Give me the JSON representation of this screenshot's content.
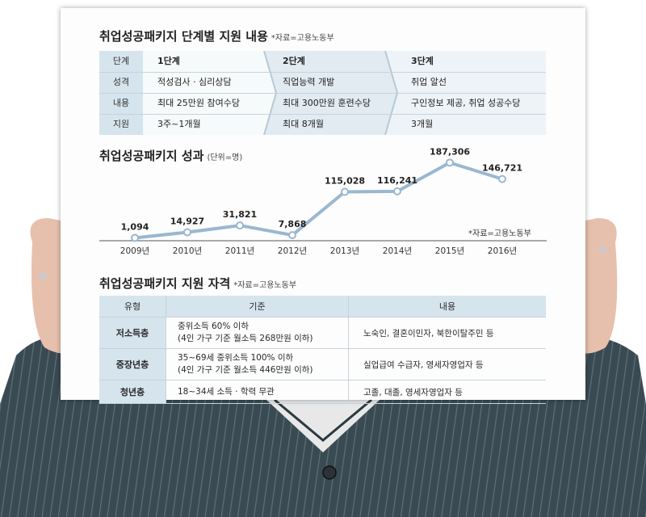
{
  "stage_section": {
    "title": "취업성공패키지 단계별 지원 내용",
    "source": "*자료=고용노동부",
    "row_labels": [
      "단계",
      "성격",
      "내용",
      "지원"
    ],
    "stages": [
      {
        "name": "1단계",
        "nature": "적성검사 · 심리상담",
        "content": "최대 25만원 참여수당",
        "period": "3주~1개월"
      },
      {
        "name": "2단계",
        "nature": "직업능력 개발",
        "content": "최대 300만원 훈련수당",
        "period": "최대 8개월"
      },
      {
        "name": "3단계",
        "nature": "취업 알선",
        "content": "구인정보 제공, 취업 성공수당",
        "period": "3개월"
      }
    ]
  },
  "chart_section": {
    "title": "취업성공패키지 성과",
    "unit": "(단위=명)",
    "source": "*자료=고용노동부"
  },
  "chart_data": {
    "type": "line",
    "title": "취업성공패키지 성과",
    "unit": "(단위=명)",
    "categories": [
      "2009년",
      "2010년",
      "2011년",
      "2012년",
      "2013년",
      "2014년",
      "2015년",
      "2016년"
    ],
    "values": [
      1094,
      14927,
      31821,
      7868,
      115028,
      116241,
      187306,
      146721
    ],
    "value_labels": [
      "1,094",
      "14,927",
      "31,821",
      "7,868",
      "115,028",
      "116,241",
      "187,306",
      "146,721"
    ],
    "ylim": [
      0,
      200000
    ],
    "grid": false,
    "line_color": "#9ab7d0"
  },
  "eligibility_section": {
    "title": "취업성공패키지 지원 자격",
    "source": "*자료=고용노동부",
    "headers": [
      "유형",
      "기준",
      "내용"
    ],
    "rows": [
      {
        "type": "저소득층",
        "criteria1": "중위소득 60% 이하",
        "criteria2": "(4인 가구 기준 월소득 268만원 이하)",
        "content": "노숙인, 결혼이민자, 북한이탈주민 등"
      },
      {
        "type": "중장년층",
        "criteria1": "35~69세 중위소득 100% 이하",
        "criteria2": "(4인 가구 기준 월소득 446만원 이하)",
        "content": "실업급여 수급자, 영세자영업자 등"
      },
      {
        "type": "청년층",
        "criteria1": "18~34세 소득 · 학력 무관",
        "criteria2": "",
        "content": "고졸, 대졸, 영세자영업자 등"
      }
    ]
  }
}
